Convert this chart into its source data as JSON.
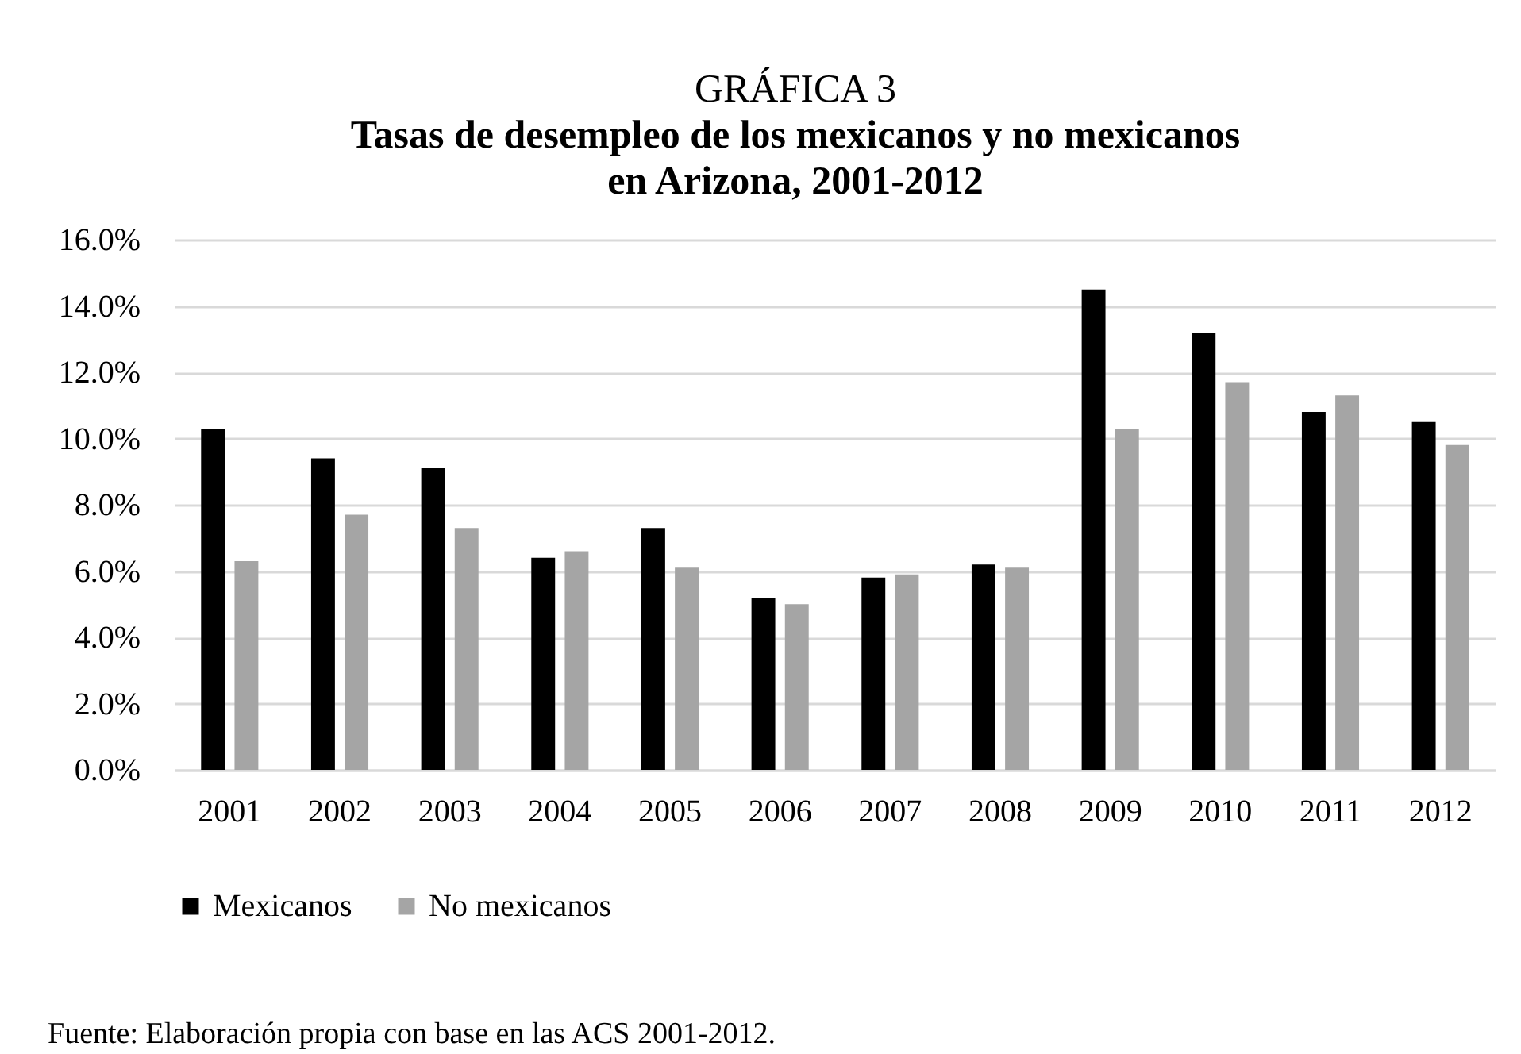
{
  "chart_data": {
    "type": "bar",
    "title": "GRÁFICA 3",
    "subtitle": "Tasas de desempleo de los mexicanos y no mexicanos en Arizona, 2001-2012",
    "categories": [
      "2001",
      "2002",
      "2003",
      "2004",
      "2005",
      "2006",
      "2007",
      "2008",
      "2009",
      "2010",
      "2011",
      "2012"
    ],
    "series": [
      {
        "name": "Mexicanos",
        "color": "#000000",
        "values": [
          10.3,
          9.4,
          9.1,
          6.4,
          7.3,
          5.2,
          5.8,
          6.2,
          14.5,
          13.2,
          10.8,
          10.5
        ]
      },
      {
        "name": "No mexicanos",
        "color": "#a5a5a5",
        "values": [
          6.3,
          7.7,
          7.3,
          6.6,
          6.1,
          5.0,
          5.9,
          6.1,
          10.3,
          11.7,
          11.3,
          9.8
        ]
      }
    ],
    "ylim": [
      0,
      16
    ],
    "yticks": [
      {
        "value": 0,
        "label": "0.0%"
      },
      {
        "value": 2,
        "label": "2.0%"
      },
      {
        "value": 4,
        "label": "4.0%"
      },
      {
        "value": 6,
        "label": "6.0%"
      },
      {
        "value": 8,
        "label": "8.0%"
      },
      {
        "value": 10,
        "label": "10.0%"
      },
      {
        "value": 12,
        "label": "12.0%"
      },
      {
        "value": 14,
        "label": "14.0%"
      },
      {
        "value": 16,
        "label": "16.0%"
      }
    ],
    "grid": "y",
    "legend": "bottom",
    "annotations": [
      "Fuente: Elaboración propia con base en las ACS 2001-2012."
    ]
  }
}
